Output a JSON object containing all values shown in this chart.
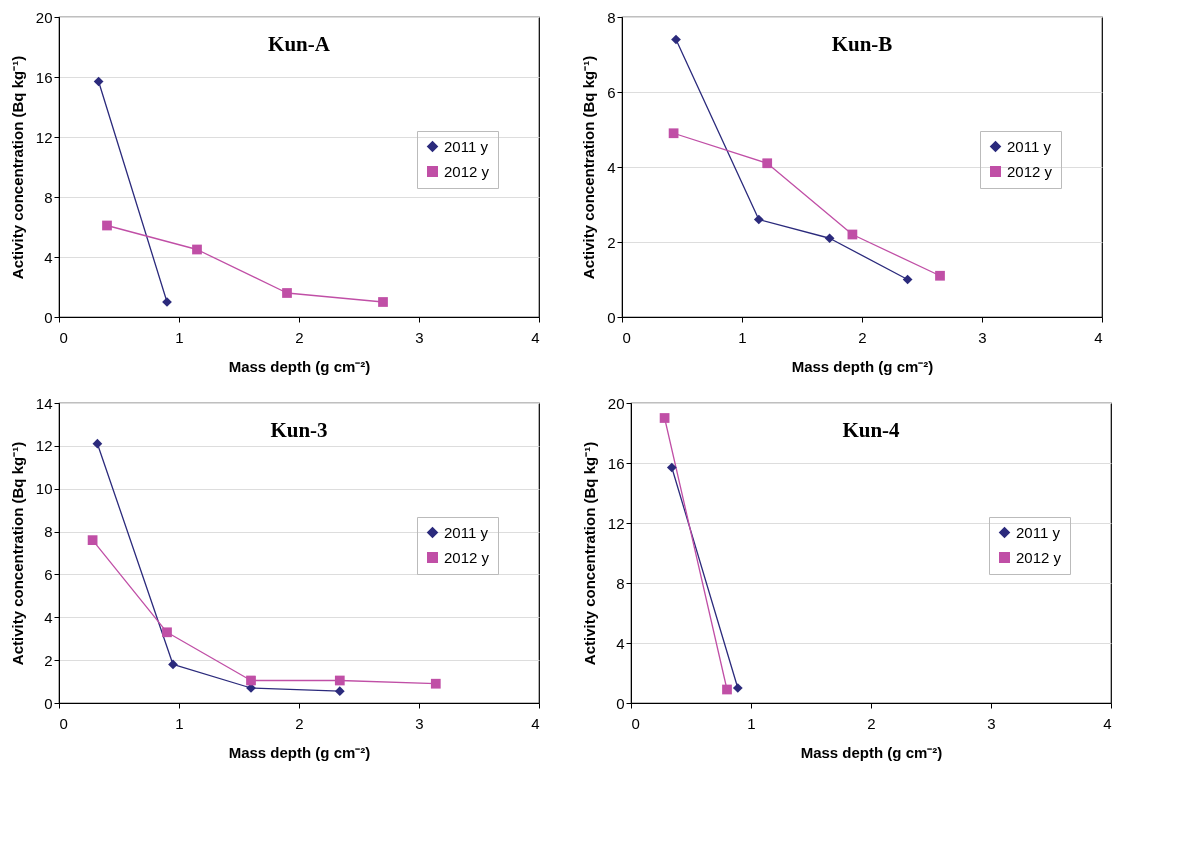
{
  "chart_data": [
    {
      "type": "line",
      "title": "Kun-A",
      "xlabel": "Mass depth (g cm⁻²)",
      "ylabel": "Activity concentration (Bq kg⁻¹)",
      "xlim": [
        0,
        4
      ],
      "xticks": [
        0,
        1,
        2,
        3,
        4
      ],
      "ylim": [
        0,
        20
      ],
      "yticks": [
        0,
        4,
        8,
        12,
        16,
        20
      ],
      "grid": "y",
      "legend": "right",
      "series": [
        {
          "name": "2011 y",
          "color": "#2b2a7c",
          "marker": "diamond",
          "x": [
            0.33,
            0.9
          ],
          "values": [
            15.7,
            1.0
          ]
        },
        {
          "name": "2012 y",
          "color": "#c04fa6",
          "marker": "square",
          "x": [
            0.4,
            1.15,
            1.9,
            2.7
          ],
          "values": [
            6.1,
            4.5,
            1.6,
            1.0
          ]
        }
      ]
    },
    {
      "type": "line",
      "title": "Kun-B",
      "xlabel": "Mass depth (g cm⁻²)",
      "ylabel": "Activity concentration (Bq kg⁻¹)",
      "xlim": [
        0,
        4
      ],
      "xticks": [
        0,
        1,
        2,
        3,
        4
      ],
      "ylim": [
        0,
        8
      ],
      "yticks": [
        0,
        2,
        4,
        6,
        8
      ],
      "grid": "y",
      "legend": "right",
      "series": [
        {
          "name": "2011 y",
          "color": "#2b2a7c",
          "marker": "diamond",
          "x": [
            0.45,
            1.14,
            1.73,
            2.38
          ],
          "values": [
            7.4,
            2.6,
            2.1,
            1.0
          ]
        },
        {
          "name": "2012 y",
          "color": "#c04fa6",
          "marker": "square",
          "x": [
            0.43,
            1.21,
            1.92,
            2.65
          ],
          "values": [
            4.9,
            4.1,
            2.2,
            1.1
          ]
        }
      ]
    },
    {
      "type": "line",
      "title": "Kun-3",
      "xlabel": "Mass depth (g cm⁻²)",
      "ylabel": "Activity concentration (Bq kg⁻¹)",
      "xlim": [
        0,
        4
      ],
      "xticks": [
        0,
        1,
        2,
        3,
        4
      ],
      "ylim": [
        0,
        14
      ],
      "yticks": [
        0,
        2,
        4,
        6,
        8,
        10,
        12,
        14
      ],
      "grid": "y",
      "legend": "right",
      "series": [
        {
          "name": "2011 y",
          "color": "#2b2a7c",
          "marker": "diamond",
          "x": [
            0.32,
            0.95,
            1.6,
            2.34
          ],
          "values": [
            12.1,
            1.8,
            0.7,
            0.55
          ]
        },
        {
          "name": "2012 y",
          "color": "#c04fa6",
          "marker": "square",
          "x": [
            0.28,
            0.9,
            1.6,
            2.34,
            3.14
          ],
          "values": [
            7.6,
            3.3,
            1.05,
            1.05,
            0.9
          ]
        }
      ]
    },
    {
      "type": "line",
      "title": "Kun-4",
      "xlabel": "Mass depth (g cm⁻²)",
      "ylabel": "Activity concentration (Bq kg⁻¹)",
      "xlim": [
        0,
        4
      ],
      "xticks": [
        0,
        1,
        2,
        3,
        4
      ],
      "ylim": [
        0,
        20
      ],
      "yticks": [
        0,
        4,
        8,
        12,
        16,
        20
      ],
      "grid": "y",
      "legend": "right",
      "series": [
        {
          "name": "2011 y",
          "color": "#2b2a7c",
          "marker": "diamond",
          "x": [
            0.34,
            0.89
          ],
          "values": [
            15.7,
            1.0
          ]
        },
        {
          "name": "2012 y",
          "color": "#c04fa6",
          "marker": "square",
          "x": [
            0.28,
            0.8
          ],
          "values": [
            19.0,
            0.9
          ]
        }
      ]
    }
  ]
}
